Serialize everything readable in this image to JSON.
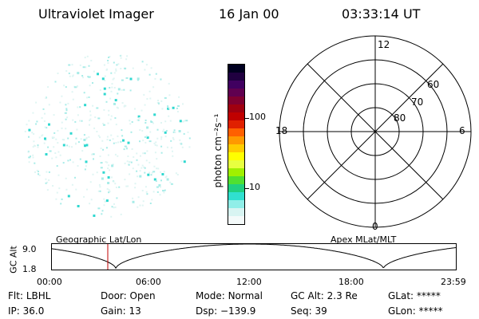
{
  "header": {
    "title": "Ultraviolet Imager",
    "date": "16 Jan 00",
    "time": "03:33:14 UT"
  },
  "colorbar": {
    "unit_label": "photon cm⁻²s⁻¹",
    "ticks": [
      "100",
      "10"
    ],
    "colors": [
      "#000020",
      "#200040",
      "#400060",
      "#600050",
      "#800030",
      "#a00010",
      "#c00000",
      "#e02000",
      "#ff6000",
      "#ff9900",
      "#ffcc00",
      "#ffff00",
      "#e8ff40",
      "#a0f000",
      "#50e030",
      "#20d080",
      "#30e0d0",
      "#90eee8",
      "#d8f4f2",
      "#f4fafa"
    ]
  },
  "polar_plot": {
    "mlt_labels": {
      "top": "12",
      "right": "6",
      "bottom": "0",
      "left": "18"
    },
    "lat_labels": [
      "60",
      "70",
      "80"
    ]
  },
  "altitude_plot": {
    "left_header": "Geographic Lat/Lon",
    "right_header": "Apex MLat/MLT",
    "axis_label": "GC Alt",
    "y_ticks": [
      "9.0",
      "1.8"
    ],
    "x_ticks": [
      "00:00",
      "06:00",
      "12:00",
      "18:00",
      "23:59"
    ],
    "marker_color": "#c00000",
    "curve_color": "#000000"
  },
  "status": {
    "row1": [
      {
        "key": "Flt:",
        "value": "LBHL"
      },
      {
        "key": "Door:",
        "value": "Open"
      },
      {
        "key": "Mode:",
        "value": "Normal"
      },
      {
        "key": "GC Alt:",
        "value": "2.3 Re"
      },
      {
        "key": "GLat:",
        "value": "*****"
      }
    ],
    "row2": [
      {
        "key": "IP:",
        "value": "36.0"
      },
      {
        "key": "Gain:",
        "value": "13"
      },
      {
        "key": "Dsp:",
        "value": "−139.9"
      },
      {
        "key": "Seq:",
        "value": "39"
      },
      {
        "key": "GLon:",
        "value": "*****"
      }
    ]
  }
}
